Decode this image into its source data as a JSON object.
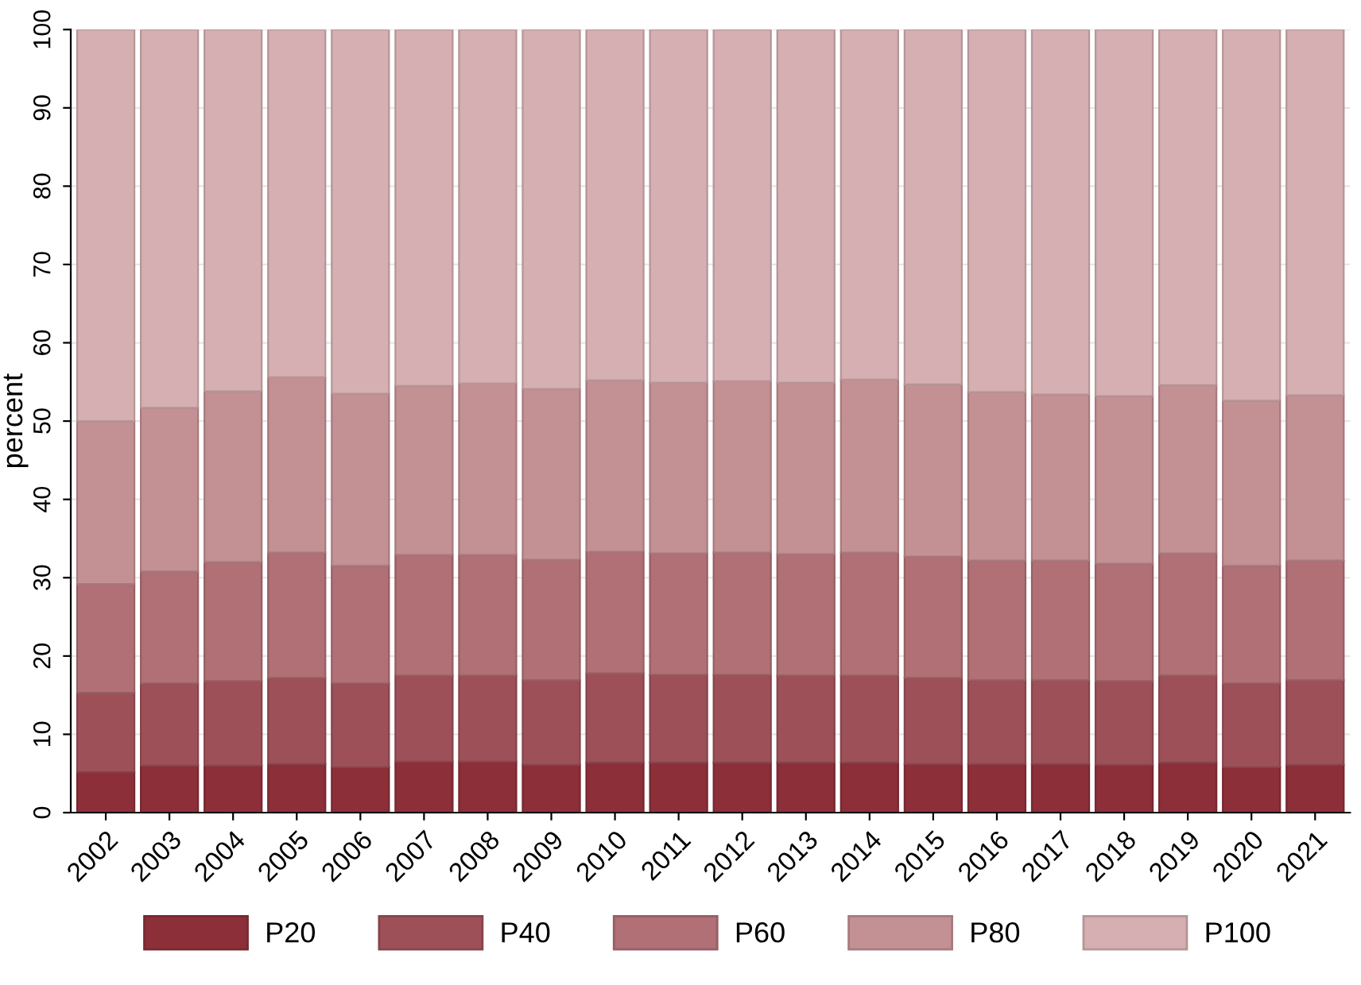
{
  "chart_data": {
    "type": "bar",
    "stacked": true,
    "ylabel": "percent",
    "categories": [
      "2002",
      "2003",
      "2004",
      "2005",
      "2006",
      "2007",
      "2008",
      "2009",
      "2010",
      "2011",
      "2012",
      "2013",
      "2014",
      "2015",
      "2016",
      "2017",
      "2018",
      "2019",
      "2020",
      "2021"
    ],
    "series": [
      {
        "name": "P20",
        "color": "#8c2f39",
        "values": [
          5.2,
          6.0,
          6.0,
          6.2,
          5.8,
          6.5,
          6.5,
          6.1,
          6.4,
          6.4,
          6.4,
          6.4,
          6.4,
          6.2,
          6.2,
          6.2,
          6.1,
          6.4,
          5.8,
          6.1
        ]
      },
      {
        "name": "P40",
        "color": "#9e5058",
        "values": [
          10.1,
          10.5,
          10.8,
          11.0,
          10.7,
          11.0,
          11.0,
          10.8,
          11.4,
          11.2,
          11.2,
          11.1,
          11.1,
          11.0,
          10.7,
          10.7,
          10.7,
          11.1,
          10.7,
          10.8
        ]
      },
      {
        "name": "P60",
        "color": "#b07075",
        "values": [
          13.9,
          14.3,
          15.2,
          16.0,
          15.0,
          15.4,
          15.4,
          15.4,
          15.5,
          15.5,
          15.6,
          15.5,
          15.7,
          15.5,
          15.3,
          15.3,
          15.0,
          15.6,
          15.0,
          15.3
        ]
      },
      {
        "name": "P80",
        "color": "#c39094",
        "values": [
          20.8,
          20.9,
          21.8,
          22.4,
          22.0,
          21.6,
          21.9,
          21.8,
          21.9,
          21.8,
          21.9,
          21.9,
          22.1,
          22.0,
          21.5,
          21.2,
          21.4,
          21.5,
          21.1,
          21.1
        ]
      },
      {
        "name": "P100",
        "color": "#d5afb2",
        "values": [
          50.0,
          48.3,
          46.2,
          44.4,
          46.5,
          45.5,
          45.2,
          45.9,
          44.8,
          45.1,
          44.9,
          45.1,
          44.7,
          45.3,
          46.3,
          46.6,
          46.8,
          45.4,
          47.4,
          46.7
        ]
      }
    ],
    "ylim": [
      0,
      100
    ],
    "yticks": [
      0,
      10,
      20,
      30,
      40,
      50,
      60,
      70,
      80,
      90,
      100
    ],
    "grid": "y",
    "legend": "bottom"
  }
}
